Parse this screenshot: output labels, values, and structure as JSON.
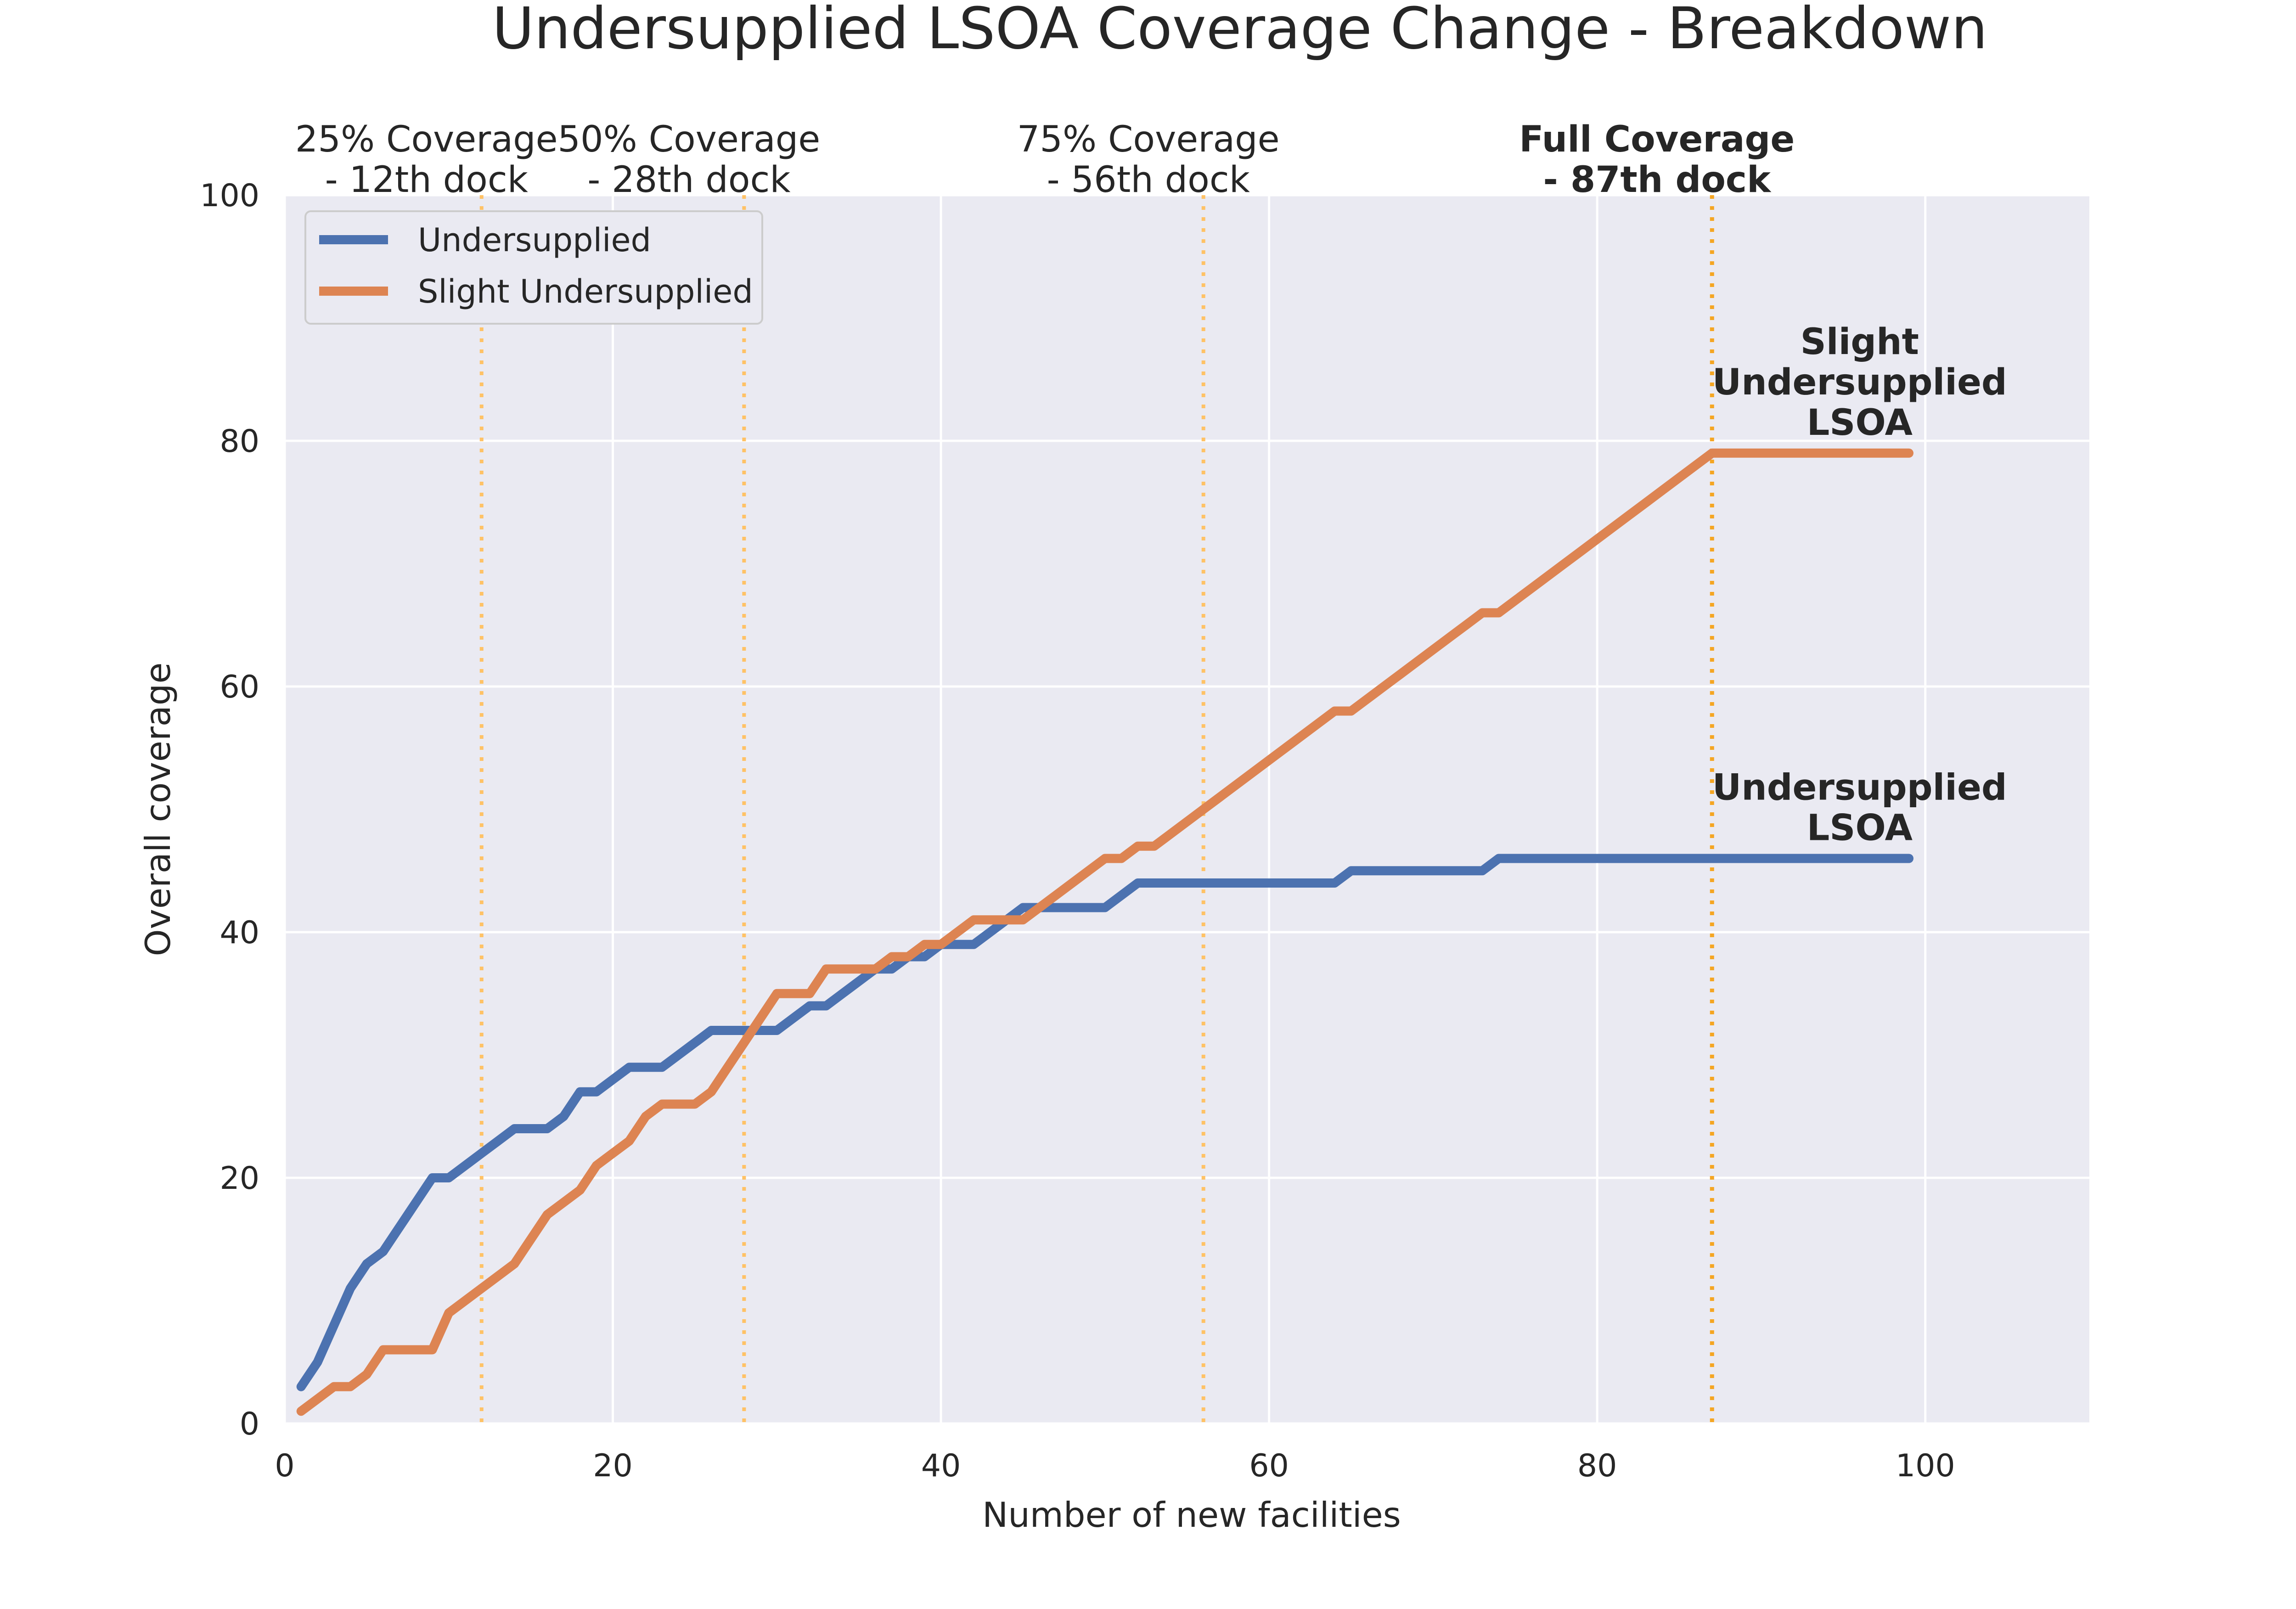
{
  "chart_data": {
    "type": "line",
    "title": "Undersupplied LSOA Coverage Change - Breakdown",
    "xlabel": "Number of new facilities",
    "ylabel": "Overall coverage",
    "xlim": [
      0,
      110
    ],
    "ylim": [
      0,
      100
    ],
    "xticks": [
      0,
      20,
      40,
      60,
      80,
      100
    ],
    "yticks": [
      0,
      20,
      40,
      60,
      80,
      100
    ],
    "grid": true,
    "legend_position": "upper-left",
    "background_color": "#eaeaf2",
    "grid_color": "#ffffff",
    "series": [
      {
        "name": "Undersupplied",
        "color": "#4c72b0",
        "x": [
          1,
          2,
          3,
          4,
          5,
          6,
          7,
          8,
          9,
          10,
          11,
          12,
          13,
          14,
          15,
          16,
          17,
          18,
          19,
          20,
          21,
          22,
          23,
          24,
          25,
          26,
          27,
          28,
          29,
          30,
          31,
          32,
          33,
          34,
          35,
          36,
          37,
          38,
          39,
          40,
          41,
          42,
          43,
          44,
          45,
          46,
          47,
          48,
          49,
          50,
          51,
          52,
          53,
          54,
          55,
          56,
          57,
          58,
          59,
          60,
          61,
          62,
          63,
          64,
          65,
          66,
          67,
          68,
          69,
          70,
          71,
          72,
          73,
          74,
          75,
          76,
          77,
          78,
          79,
          80,
          81,
          82,
          83,
          84,
          85,
          86,
          87,
          88,
          89,
          90,
          91,
          92,
          93,
          94,
          95,
          96,
          97,
          98,
          99
        ],
        "y": [
          3,
          5,
          8,
          11,
          13,
          14,
          16,
          18,
          20,
          20,
          21,
          22,
          23,
          24,
          24,
          24,
          25,
          27,
          27,
          28,
          29,
          29,
          29,
          30,
          31,
          32,
          32,
          32,
          32,
          32,
          33,
          34,
          34,
          35,
          36,
          37,
          37,
          38,
          38,
          39,
          39,
          39,
          40,
          41,
          42,
          42,
          42,
          42,
          42,
          42,
          43,
          44,
          44,
          44,
          44,
          44,
          44,
          44,
          44,
          44,
          44,
          44,
          44,
          44,
          45,
          45,
          45,
          45,
          45,
          45,
          45,
          45,
          45,
          46,
          46,
          46,
          46,
          46,
          46,
          46,
          46,
          46,
          46,
          46,
          46,
          46,
          46,
          46,
          46,
          46,
          46,
          46,
          46,
          46,
          46,
          46,
          46,
          46,
          46
        ]
      },
      {
        "name": "Slight Undersupplied",
        "color": "#dd8452",
        "x": [
          1,
          2,
          3,
          4,
          5,
          6,
          7,
          8,
          9,
          10,
          11,
          12,
          13,
          14,
          15,
          16,
          17,
          18,
          19,
          20,
          21,
          22,
          23,
          24,
          25,
          26,
          27,
          28,
          29,
          30,
          31,
          32,
          33,
          34,
          35,
          36,
          37,
          38,
          39,
          40,
          41,
          42,
          43,
          44,
          45,
          46,
          47,
          48,
          49,
          50,
          51,
          52,
          53,
          54,
          55,
          56,
          57,
          58,
          59,
          60,
          61,
          62,
          63,
          64,
          65,
          66,
          67,
          68,
          69,
          70,
          71,
          72,
          73,
          74,
          75,
          76,
          77,
          78,
          79,
          80,
          81,
          82,
          83,
          84,
          85,
          86,
          87,
          88,
          89,
          90,
          91,
          92,
          93,
          94,
          95,
          96,
          97,
          98,
          99
        ],
        "y": [
          1,
          2,
          3,
          3,
          4,
          6,
          6,
          6,
          6,
          9,
          10,
          11,
          12,
          13,
          15,
          17,
          18,
          19,
          21,
          22,
          23,
          25,
          26,
          26,
          26,
          27,
          29,
          31,
          33,
          35,
          35,
          35,
          37,
          37,
          37,
          37,
          38,
          38,
          39,
          39,
          40,
          41,
          41,
          41,
          41,
          42,
          43,
          44,
          45,
          46,
          46,
          47,
          47,
          48,
          49,
          50,
          51,
          52,
          53,
          54,
          55,
          56,
          57,
          58,
          58,
          59,
          60,
          61,
          62,
          63,
          64,
          65,
          66,
          66,
          67,
          68,
          69,
          70,
          71,
          72,
          73,
          74,
          75,
          76,
          77,
          78,
          79,
          79,
          79,
          79,
          79,
          79,
          79,
          79,
          79,
          79,
          79,
          79,
          79
        ]
      }
    ],
    "vlines": [
      {
        "x": 12,
        "label_line1": "25% Coverage",
        "label_line2": " - 12th dock",
        "bold": false,
        "color": "#ffc266"
      },
      {
        "x": 28,
        "label_line1": "50% Coverage",
        "label_line2": " - 28th dock",
        "bold": false,
        "color": "#ffc266"
      },
      {
        "x": 56,
        "label_line1": "75% Coverage",
        "label_line2": " - 56th dock",
        "bold": false,
        "color": "#ffc266"
      },
      {
        "x": 87,
        "label_line1": "Full Coverage",
        "label_line2": " - 87th dock",
        "bold": true,
        "color": "#f5a623"
      }
    ],
    "annotations": [
      {
        "lines": [
          "Slight",
          "Undersupplied",
          "LSOA"
        ],
        "x": 96,
        "y": 79,
        "bold": true
      },
      {
        "lines": [
          "Undersupplied",
          "LSOA"
        ],
        "x": 96,
        "y": 46,
        "bold": true
      }
    ]
  }
}
